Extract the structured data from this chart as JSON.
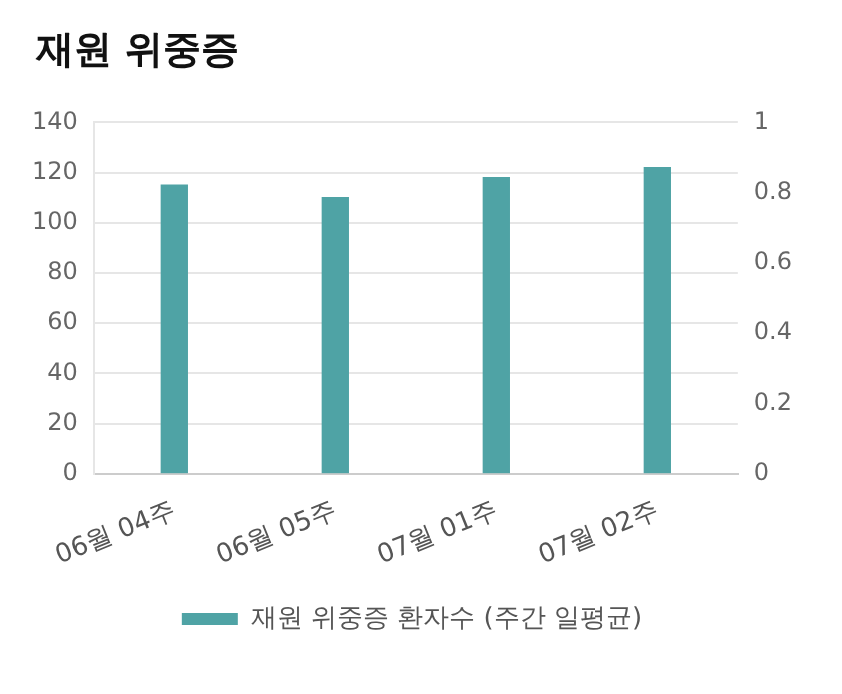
{
  "chart_data": {
    "type": "bar",
    "title": "재원 위중증",
    "categories": [
      "06월 04주",
      "06월 05주",
      "07월 01주",
      "07월 02주"
    ],
    "series": [
      {
        "name": "재원 위중증 환자수 (주간 일평균)",
        "color": "#4fa3a5",
        "values": [
          115,
          110,
          118,
          122
        ]
      }
    ],
    "ylim": [
      0,
      140
    ],
    "yticks": [
      0,
      20,
      40,
      60,
      80,
      100,
      120,
      140
    ],
    "y2lim": [
      0,
      1
    ],
    "y2ticks": [
      0,
      0.2,
      0.4,
      0.6,
      0.8,
      1
    ],
    "grid": "y",
    "legend": "bottom"
  }
}
